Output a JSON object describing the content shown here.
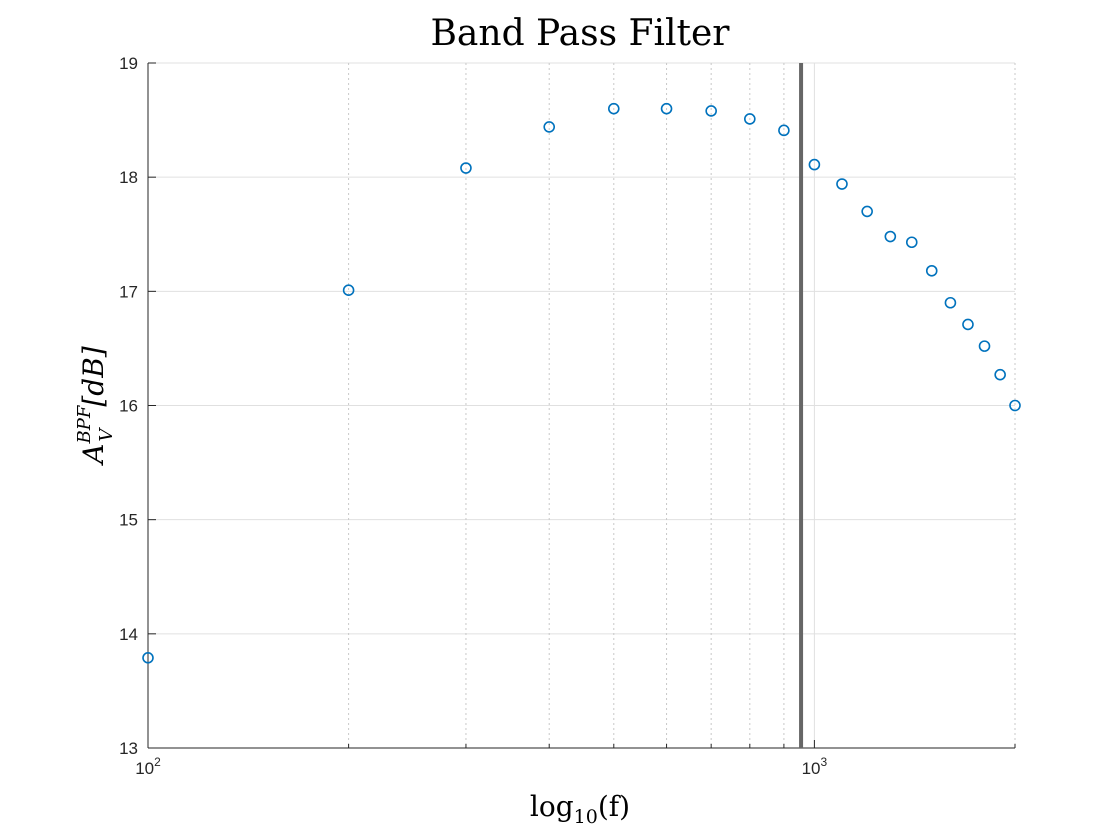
{
  "chart_data": {
    "type": "scatter",
    "title": "Band Pass Filter",
    "xlabel_base": "log",
    "xlabel_sub": "10",
    "xlabel_arg": "(f)",
    "ylabel_main": "A",
    "ylabel_sub": "V",
    "ylabel_sup": "BPF",
    "ylabel_rest": "[dB]",
    "x_scale": "log",
    "xlim": [
      100,
      2000
    ],
    "ylim": [
      13,
      19
    ],
    "y_ticks": [
      13,
      14,
      15,
      16,
      17,
      18,
      19
    ],
    "x_major_ticks": [
      {
        "value": 100,
        "base": "10",
        "exp": "2"
      },
      {
        "value": 1000,
        "base": "10",
        "exp": "3"
      }
    ],
    "x_minor_ticks": [
      200,
      300,
      400,
      500,
      600,
      700,
      800,
      900,
      2000
    ],
    "grid": true,
    "marker": "circle",
    "marker_color": "#0072BD",
    "vline": {
      "x": 955,
      "color": "#666666"
    },
    "series": [
      {
        "x": [
          100,
          200,
          300,
          400,
          500,
          600,
          700,
          800,
          900,
          1000,
          1100,
          1200,
          1300,
          1400,
          1500,
          1600,
          1700,
          1800,
          1900,
          2000
        ],
        "y": [
          13.79,
          17.01,
          18.08,
          18.44,
          18.6,
          18.6,
          18.58,
          18.51,
          18.41,
          18.11,
          17.94,
          17.7,
          17.48,
          17.43,
          17.18,
          16.9,
          16.71,
          16.52,
          16.27,
          16.0
        ]
      }
    ]
  }
}
